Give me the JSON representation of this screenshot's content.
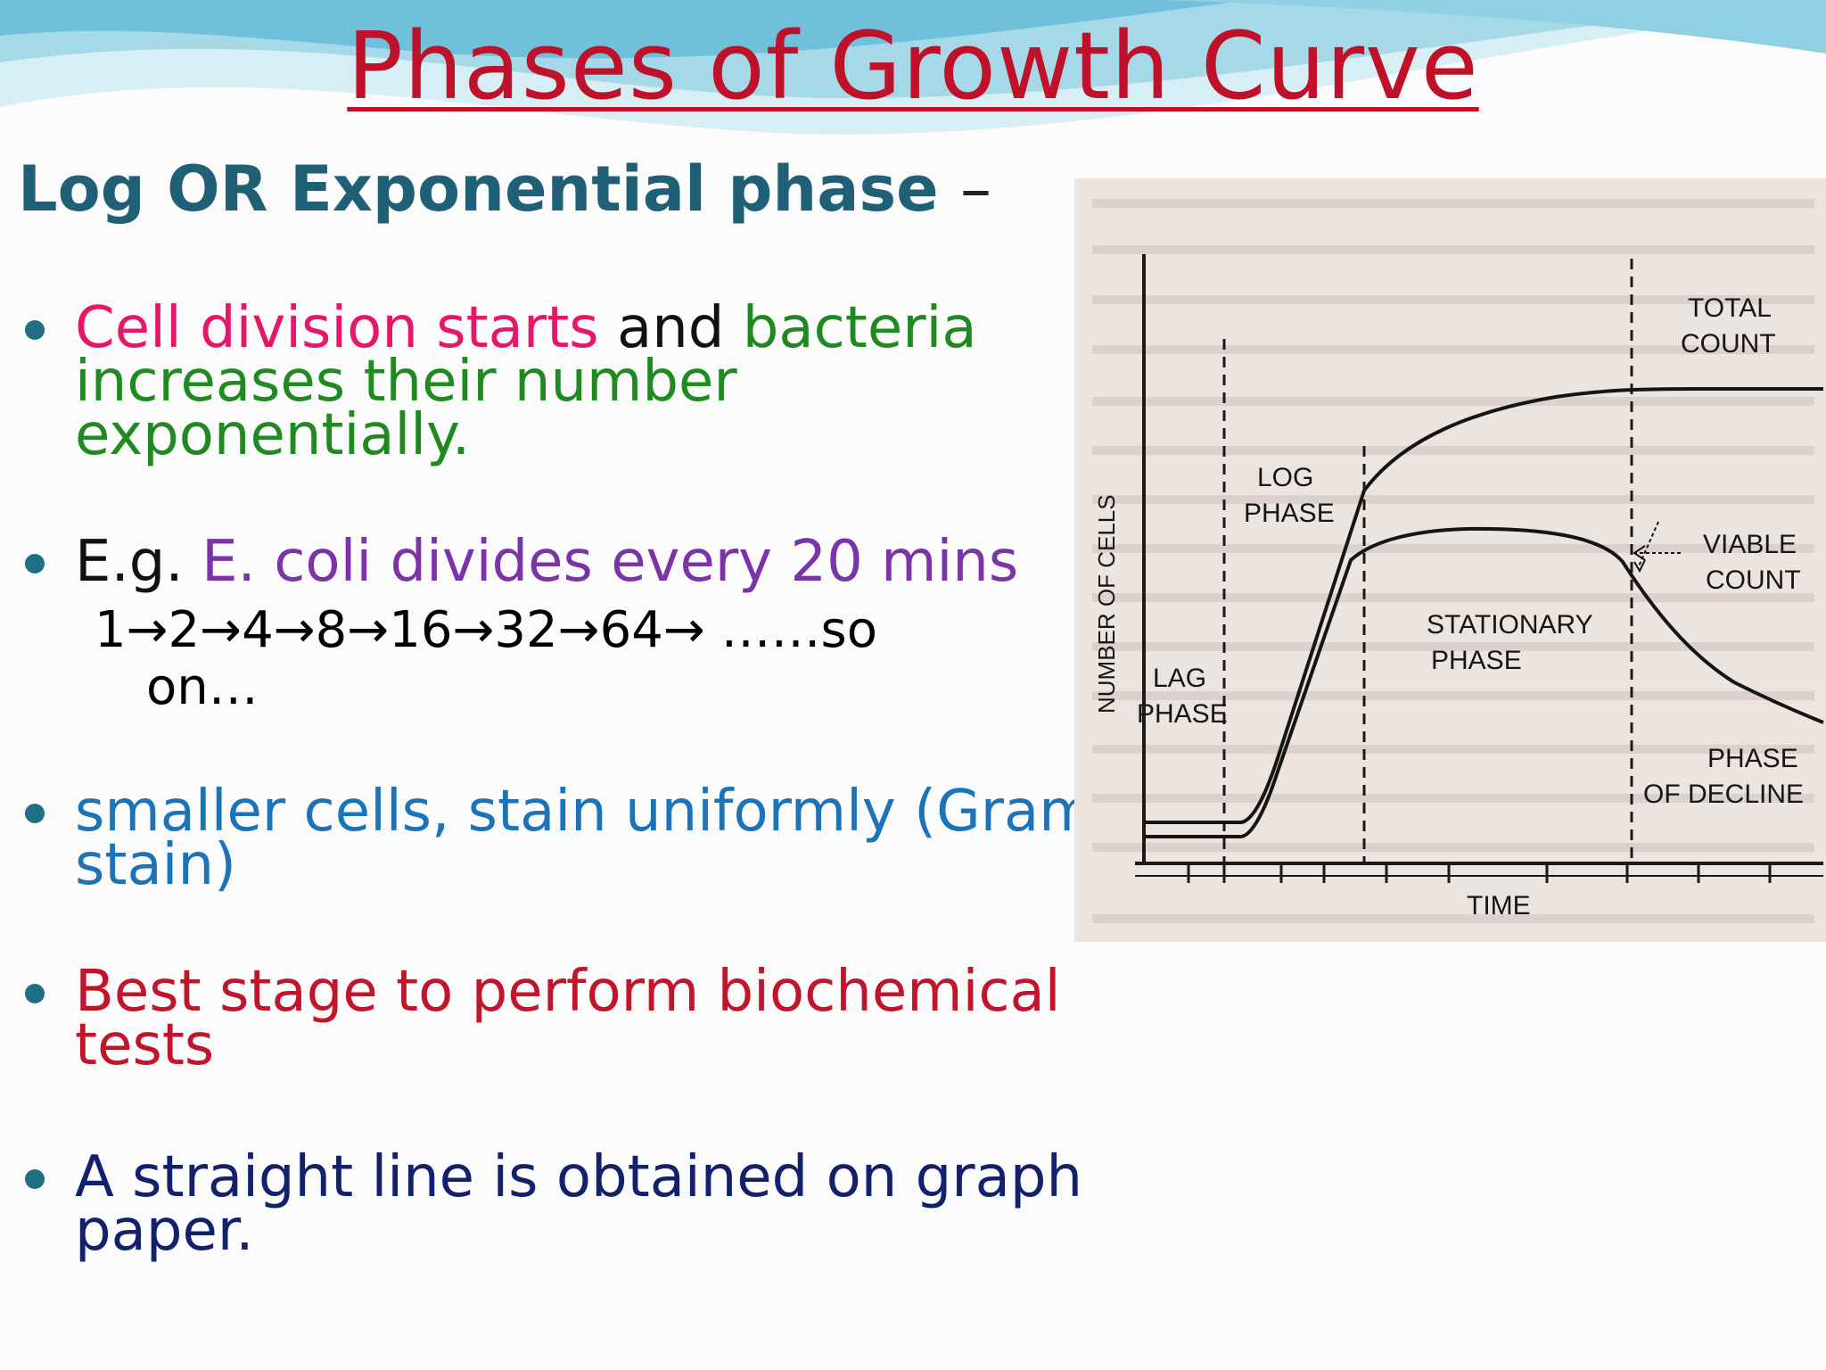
{
  "title": "Phases of Growth Curve",
  "subtitle": {
    "text": "Log OR Exponential phase",
    "dash": "–"
  },
  "bullets": [
    {
      "lines": [
        [
          {
            "text": "Cell division starts",
            "color": "#e8166a"
          },
          {
            "text": " and ",
            "color": "#111111"
          },
          {
            "text": "bacteria",
            "color": "#1f8a1f"
          }
        ],
        [
          {
            "text": "increases their number",
            "color": "#1f8a1f"
          }
        ],
        [
          {
            "text": "exponentially.",
            "color": "#1f8a1f"
          }
        ]
      ]
    },
    {
      "lines": [
        [
          {
            "text": "E.g. ",
            "color": "#111111"
          },
          {
            "text": "E. coli divides every 20 mins",
            "color": "#7a34a8"
          }
        ]
      ],
      "sequence": "1→2→4→8→16→32→64→ ……so",
      "sequence_end": "on…"
    },
    {
      "lines": [
        [
          {
            "text": "smaller cells, stain uniformly (Gram",
            "color": "#1b73b8"
          }
        ],
        [
          {
            "text": "stain)",
            "color": "#1b73b8"
          }
        ]
      ]
    },
    {
      "lines": [
        [
          {
            "text": "Best stage to perform biochemical",
            "color": "#c0152a"
          }
        ],
        [
          {
            "text": "tests",
            "color": "#c0152a"
          }
        ]
      ]
    },
    {
      "lines": [
        [
          {
            "text": "A straight line is obtained on graph",
            "color": "#13206b"
          }
        ],
        [
          {
            "text": "paper.",
            "color": "#13206b"
          }
        ]
      ]
    }
  ],
  "figure": {
    "y_label": "NUMBER OF CELLS",
    "x_label": "TIME",
    "phases": [
      {
        "label": "LAG",
        "label2": "PHASE"
      },
      {
        "label": "LOG",
        "label2": "PHASE"
      },
      {
        "label": "STATIONARY",
        "label2": "PHASE"
      },
      {
        "label": "PHASE",
        "label2": "OF DECLINE"
      }
    ],
    "curves": [
      {
        "label": "TOTAL",
        "label2": "COUNT"
      },
      {
        "label": "VIABLE",
        "label2": "COUNT"
      }
    ]
  },
  "colors": {
    "title": "#c0112a",
    "subtitle": "#1f6076",
    "bullet_dot": "#1f6f86",
    "wave_light": "#b9e3ee",
    "wave_dark": "#5bb4d0"
  }
}
